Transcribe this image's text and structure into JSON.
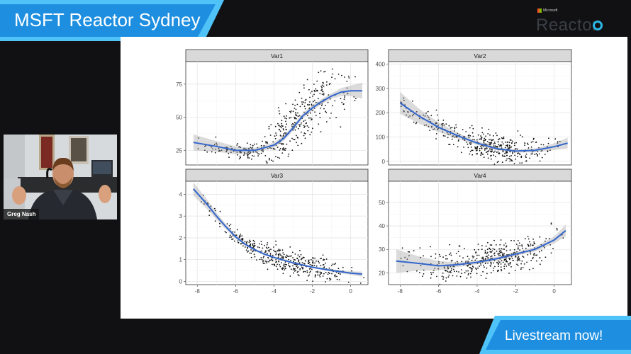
{
  "stream": {
    "title": "MSFT Reactor Sydney",
    "accent": "#1e8fe0",
    "accent_light": "#4fc3f7",
    "live_label": "Livestream now!"
  },
  "brand": {
    "small": "Microsoft",
    "name": "Reactor"
  },
  "presenter": {
    "name": "Greg Nash"
  },
  "chart_data": {
    "type": "scatter",
    "layout": "facet-2x2",
    "x_ticks": [
      -8,
      -6,
      -4,
      -2,
      0
    ],
    "xlim": [
      -8.6,
      0.9
    ],
    "smooth_color": "#3366cc",
    "point_color": "#111111",
    "panels": [
      {
        "name": "Var1",
        "ylim": [
          14,
          92
        ],
        "y_ticks": [
          25,
          50,
          75
        ],
        "smooth": {
          "x": [
            -8.2,
            -7,
            -6,
            -5,
            -4,
            -3.5,
            -3,
            -2.5,
            -2,
            -1.5,
            -1,
            -0.5,
            0,
            0.6
          ],
          "y": [
            31,
            28,
            25,
            25,
            29,
            34,
            42,
            51,
            57,
            62,
            66,
            69,
            70,
            70
          ]
        },
        "band": [
          6,
          4,
          3,
          2,
          2,
          2,
          2,
          2,
          2,
          2,
          2,
          3,
          4,
          6
        ]
      },
      {
        "name": "Var2",
        "ylim": [
          -15,
          410
        ],
        "y_ticks": [
          0,
          100,
          200,
          300,
          400
        ],
        "smooth": {
          "x": [
            -8,
            -7,
            -6,
            -5,
            -4,
            -3,
            -2,
            -1,
            0,
            0.7
          ],
          "y": [
            240,
            185,
            140,
            105,
            75,
            52,
            42,
            45,
            60,
            75
          ]
        },
        "band": [
          45,
          30,
          20,
          12,
          8,
          6,
          6,
          8,
          14,
          22
        ]
      },
      {
        "name": "Var3",
        "ylim": [
          -0.15,
          4.6
        ],
        "y_ticks": [
          0,
          1,
          2,
          3,
          4
        ],
        "smooth": {
          "x": [
            -8.2,
            -7.5,
            -7,
            -6.5,
            -6,
            -5.5,
            -5,
            -4.5,
            -4,
            -3,
            -2,
            -1,
            0,
            0.6
          ],
          "y": [
            4.25,
            3.55,
            3.0,
            2.5,
            2.05,
            1.7,
            1.45,
            1.25,
            1.1,
            0.85,
            0.65,
            0.5,
            0.38,
            0.33
          ]
        },
        "band": [
          0.3,
          0.22,
          0.16,
          0.12,
          0.09,
          0.07,
          0.05,
          0.05,
          0.04,
          0.04,
          0.04,
          0.06,
          0.08,
          0.12
        ]
      },
      {
        "name": "Var4",
        "ylim": [
          15,
          59
        ],
        "y_ticks": [
          20,
          30,
          40,
          50
        ],
        "smooth": {
          "x": [
            -8.2,
            -7,
            -6,
            -5,
            -4,
            -3,
            -2,
            -1,
            0,
            0.6
          ],
          "y": [
            25,
            24,
            23,
            23.5,
            24.5,
            26,
            28,
            30,
            34,
            38
          ]
        },
        "band": [
          5,
          3,
          2,
          1,
          0.8,
          0.8,
          0.8,
          1,
          1.5,
          2.5
        ]
      }
    ]
  }
}
